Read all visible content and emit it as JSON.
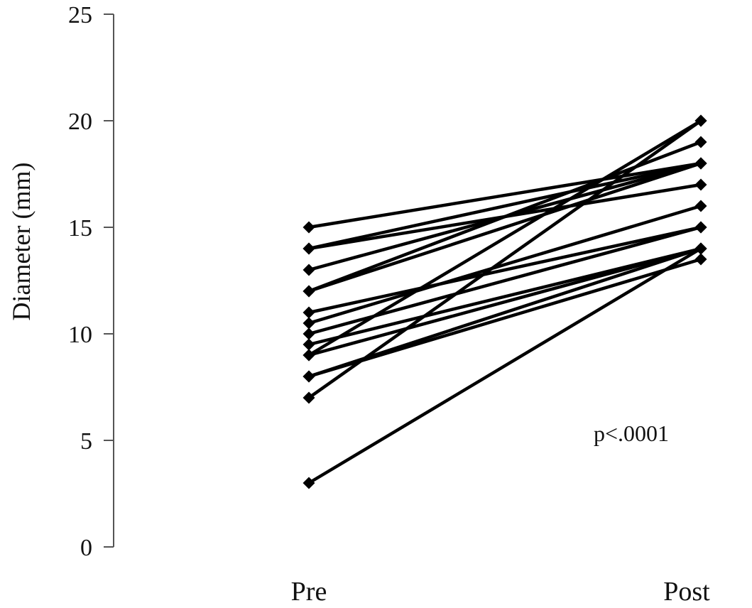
{
  "chart_data": {
    "type": "line",
    "categories": [
      "Pre",
      "Post"
    ],
    "ylabel": "Diameter (mm)",
    "ylim": [
      0,
      25
    ],
    "yticks": [
      "0",
      "5",
      "10",
      "15",
      "20",
      "25"
    ],
    "grid": false,
    "annotation": "p<.0001",
    "series": [
      {
        "values": [
          15,
          18
        ]
      },
      {
        "values": [
          14,
          18
        ]
      },
      {
        "values": [
          14,
          17
        ]
      },
      {
        "values": [
          13,
          18
        ]
      },
      {
        "values": [
          12,
          18
        ]
      },
      {
        "values": [
          12,
          19
        ]
      },
      {
        "values": [
          11,
          15
        ]
      },
      {
        "values": [
          10.5,
          16
        ]
      },
      {
        "values": [
          10,
          15
        ]
      },
      {
        "values": [
          9.5,
          14
        ]
      },
      {
        "values": [
          9,
          20
        ]
      },
      {
        "values": [
          9,
          14
        ]
      },
      {
        "values": [
          8,
          13.5
        ]
      },
      {
        "values": [
          8,
          14
        ]
      },
      {
        "values": [
          7,
          20
        ]
      },
      {
        "values": [
          3,
          14
        ]
      }
    ]
  }
}
